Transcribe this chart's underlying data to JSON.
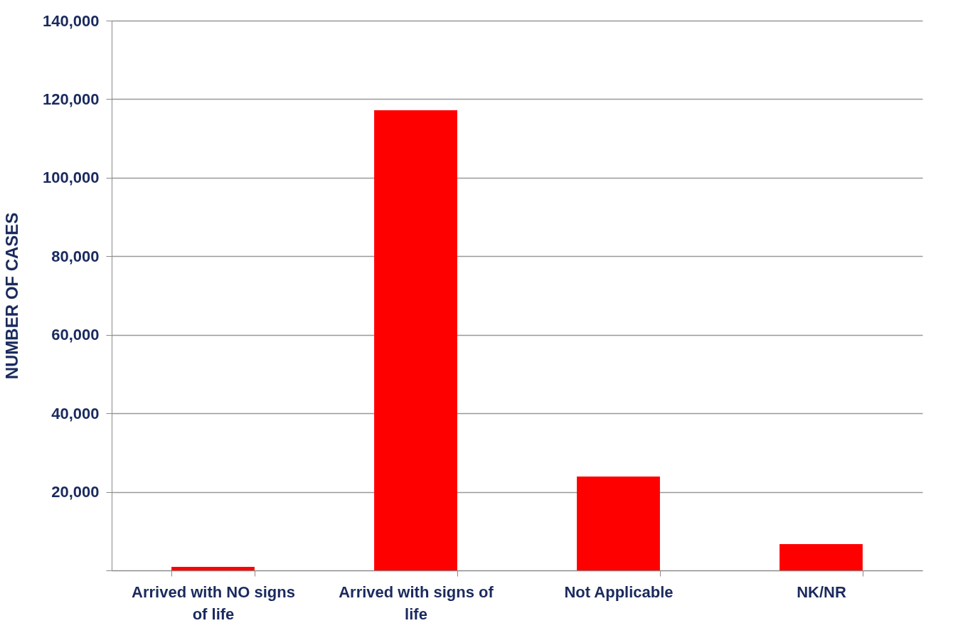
{
  "chart_data": {
    "type": "bar",
    "ylabel": "NUMBER OF CASES",
    "categories": [
      "Arrived with NO signs of life",
      "Arrived with signs of life",
      "Not Applicable",
      "NK/NR"
    ],
    "values": [
      900,
      117200,
      23900,
      6700
    ],
    "color": "#ff0000",
    "ylim": [
      0,
      140000
    ],
    "yticks": [
      {
        "value": 0,
        "label": null
      },
      {
        "value": 20000,
        "label": "20,000"
      },
      {
        "value": 40000,
        "label": "40,000"
      },
      {
        "value": 60000,
        "label": "60,000"
      },
      {
        "value": 80000,
        "label": "80,000"
      },
      {
        "value": 100000,
        "label": "100,000"
      },
      {
        "value": 120000,
        "label": "120,000"
      },
      {
        "value": 140000,
        "label": "140,000"
      }
    ],
    "grid": "y"
  }
}
